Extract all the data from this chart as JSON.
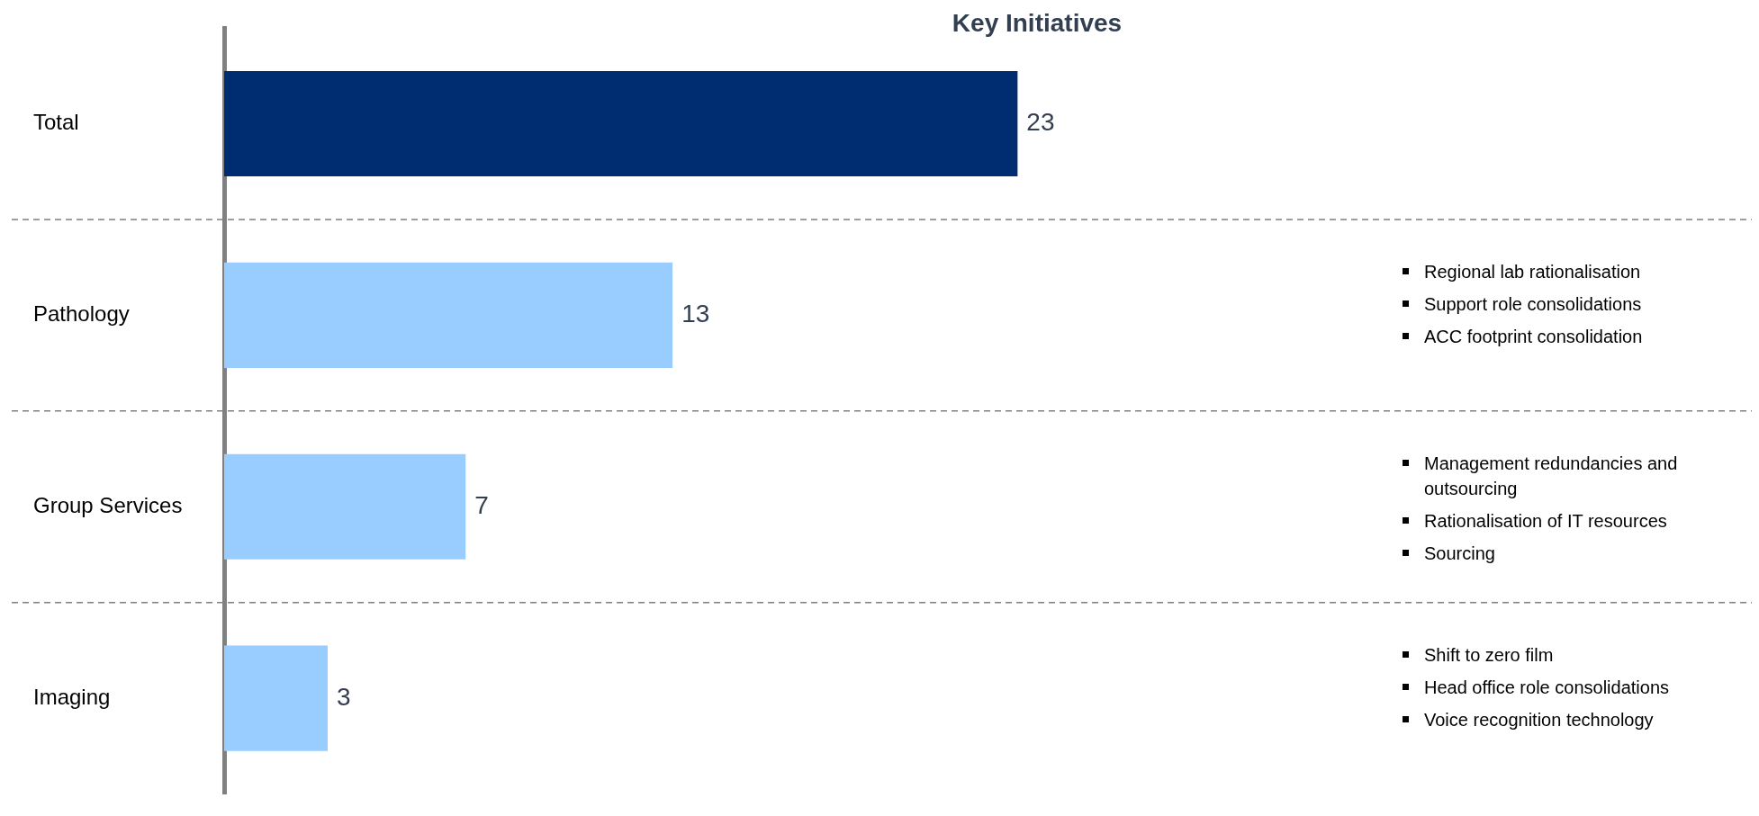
{
  "chart_data": {
    "type": "bar",
    "orientation": "horizontal",
    "title": "Key Initiatives",
    "categories": [
      "Total",
      "Pathology",
      "Group Services",
      "Imaging"
    ],
    "values": [
      23,
      13,
      7,
      3
    ],
    "colors": [
      "#002d72",
      "#99ccff",
      "#99ccff",
      "#99ccff"
    ],
    "data_labels": true,
    "grid": "y",
    "legend": false,
    "tick_labels": "y",
    "annotations": [
      "Regional lab rationalisation\nSupport role consolidations\nACC footprint consolidation",
      "Management redundancies and outsourcing\nRationalisation of IT resources\nSourcing",
      "Shift to zero film\nHead office role consolidations\nVoice recognition technology"
    ]
  }
}
